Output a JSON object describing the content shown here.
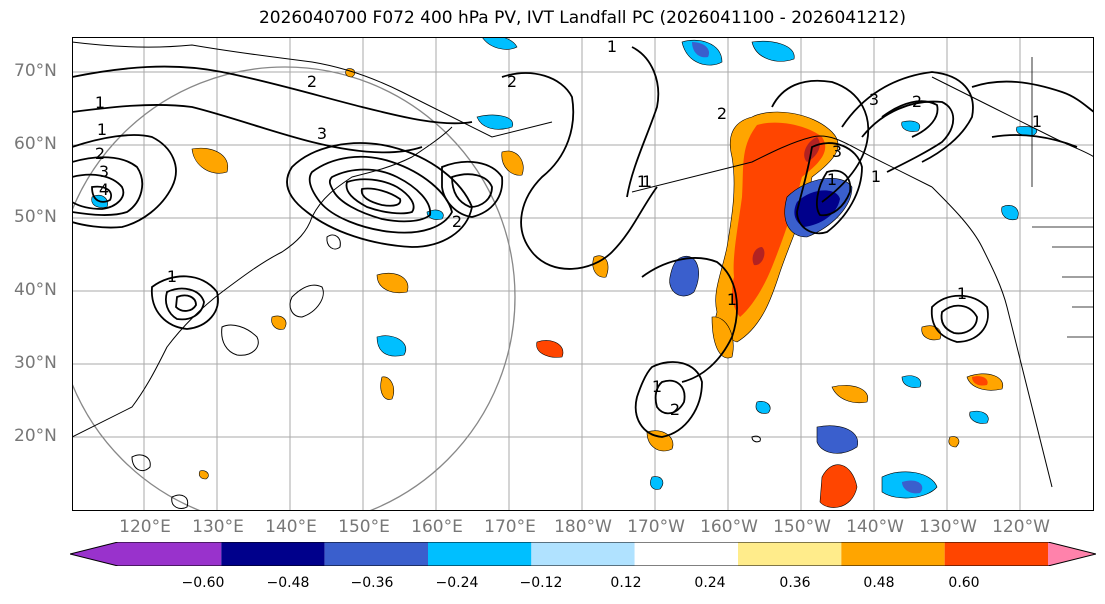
{
  "title": "2026040700 F072 400 hPa PV, IVT Landfall PC (2026041100 - 2026041212)",
  "lat_labels": [
    "70°N",
    "60°N",
    "50°N",
    "40°N",
    "30°N",
    "20°N"
  ],
  "lon_labels": [
    "120°E",
    "130°E",
    "140°E",
    "150°E",
    "160°E",
    "170°E",
    "180°W",
    "170°W",
    "160°W",
    "150°W",
    "140°W",
    "130°W",
    "120°W"
  ],
  "colorbar": {
    "colors": [
      "#9932cc",
      "#00008b",
      "#3a5fcd",
      "#00bfff",
      "#b0e2ff",
      "#ffffff",
      "#ffec8b",
      "#ffa500",
      "#ff4500",
      "#b22222",
      "#ff82ab"
    ],
    "ticks": [
      "−0.60",
      "−0.48",
      "−0.36",
      "−0.24",
      "−0.12",
      "0.12",
      "0.24",
      "0.36",
      "0.48",
      "0.60"
    ]
  },
  "contour_labels": [
    "1",
    "1",
    "2",
    "3",
    "4",
    "1",
    "2",
    "3",
    "2",
    "1",
    "1",
    "2",
    "1",
    "1",
    "2",
    "3",
    "1",
    "1",
    "3",
    "2",
    "1",
    "1",
    "2",
    "1"
  ]
}
